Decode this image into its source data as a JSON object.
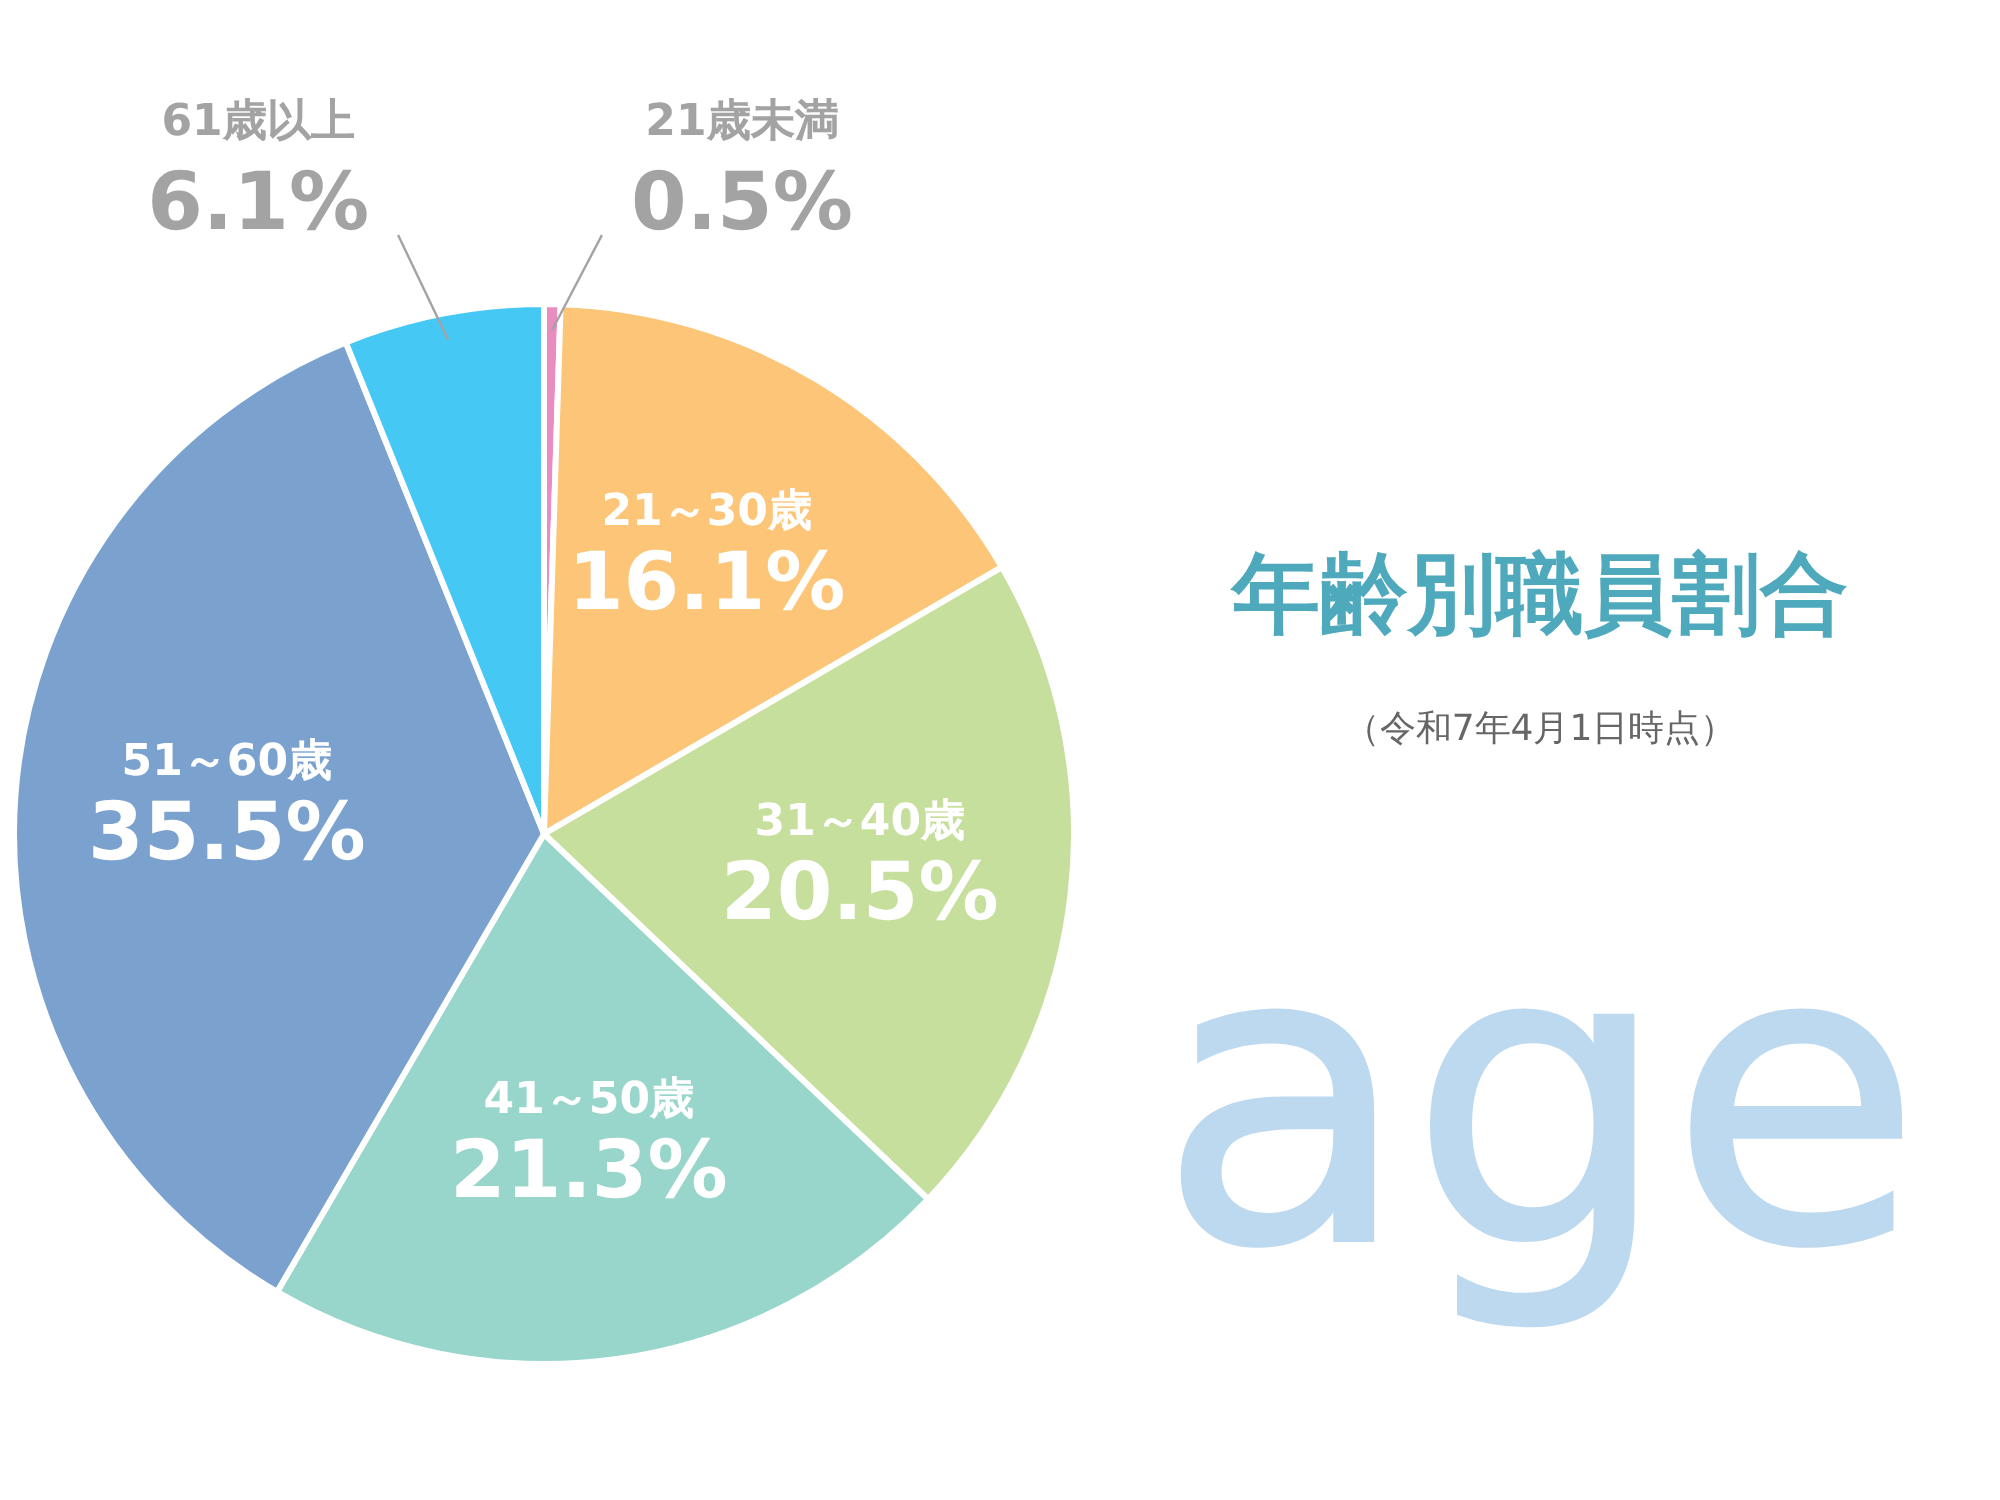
{
  "chart_data": {
    "type": "pie",
    "title": "年齢別職員割合",
    "subtitle": "（令和7年4月1日時点）",
    "categories": [
      "21歳未満",
      "21～30歳",
      "31～40歳",
      "41～50歳",
      "51～60歳",
      "61歳以上"
    ],
    "values": [
      0.5,
      16.1,
      20.5,
      21.3,
      35.5,
      6.1
    ],
    "value_labels": [
      "0.5%",
      "16.1%",
      "20.5%",
      "21.3%",
      "35.5%",
      "6.1%"
    ],
    "colors": [
      "#e98cbf",
      "#fdc578",
      "#c6df9c",
      "#98d6cc",
      "#7ba2cf",
      "#46c8f4"
    ],
    "annotations": [
      "age"
    ]
  }
}
